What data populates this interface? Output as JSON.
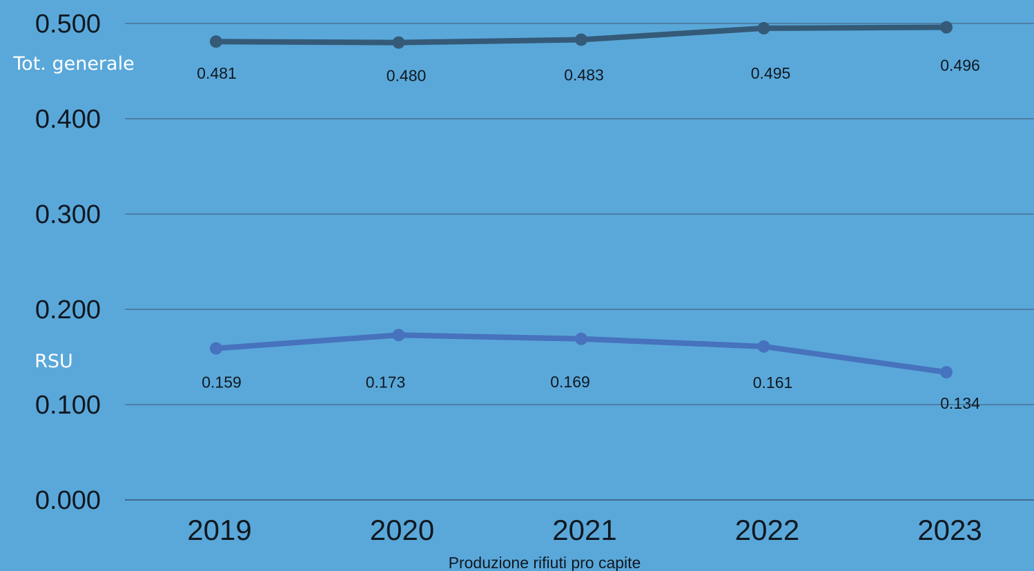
{
  "chart_data": {
    "type": "line",
    "title": "",
    "xlabel": "Produzione rifiuti pro capite",
    "ylabel": "",
    "categories": [
      "2019",
      "2020",
      "2021",
      "2022",
      "2023"
    ],
    "ylim": [
      0,
      0.5
    ],
    "yticks": [
      "0.000",
      "0.100",
      "0.200",
      "0.300",
      "0.400",
      "0.500"
    ],
    "grid": true,
    "series": [
      {
        "name": "Tot. generale",
        "values": [
          0.481,
          0.48,
          0.483,
          0.495,
          0.496
        ],
        "labels": [
          "0.481",
          "0.480",
          "0.483",
          "0.495",
          "0.496"
        ],
        "color": "#345a78"
      },
      {
        "name": "RSU",
        "values": [
          0.159,
          0.173,
          0.169,
          0.161,
          0.134
        ],
        "labels": [
          "0.159",
          "0.173",
          "0.169",
          "0.161",
          "0.134"
        ],
        "color": "#4772bd"
      }
    ]
  },
  "colors": {
    "background": "#5aa8da",
    "gridline": "#4d7ea6",
    "axis": "#3d6a90"
  }
}
